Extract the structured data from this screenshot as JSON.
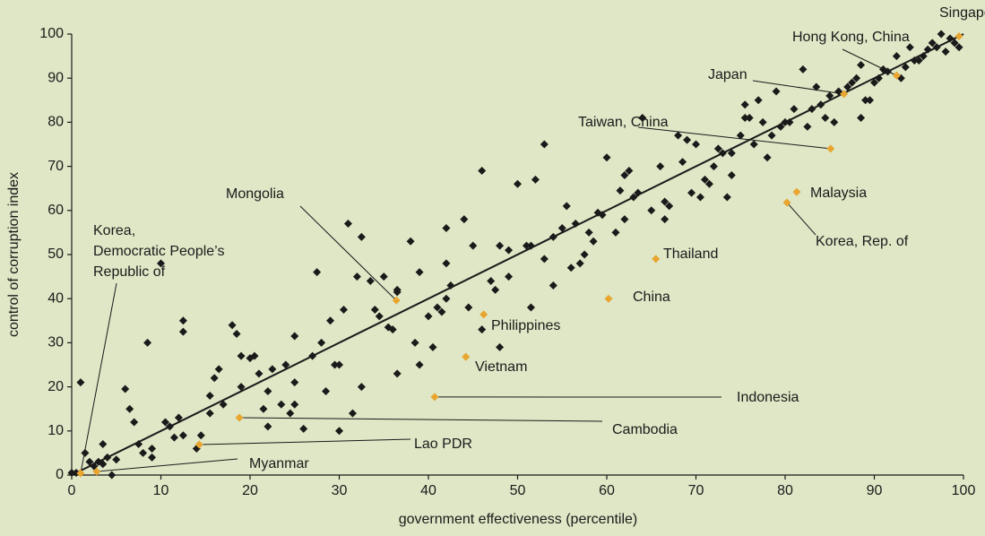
{
  "chart_data": {
    "type": "scatter",
    "x_label": "government effectiveness (percentile)",
    "y_label": "control of corruption index",
    "xlim": [
      0,
      100
    ],
    "ylim": [
      0,
      100
    ],
    "xticks": [
      0,
      10,
      20,
      30,
      40,
      50,
      60,
      70,
      80,
      90,
      100
    ],
    "yticks": [
      0,
      10,
      20,
      30,
      40,
      50,
      60,
      70,
      80,
      90,
      100
    ],
    "color": "#1a1a1a",
    "highlight_color": "#e8a530",
    "fit_line": {
      "x": [
        0,
        100
      ],
      "y": [
        0,
        100
      ]
    },
    "points": [
      [
        0,
        0.5
      ],
      [
        0.5,
        0.5
      ],
      [
        1,
        21
      ],
      [
        1.5,
        5
      ],
      [
        2,
        3
      ],
      [
        2.5,
        2
      ],
      [
        3,
        3
      ],
      [
        3.5,
        2.5
      ],
      [
        3.5,
        7
      ],
      [
        4,
        4
      ],
      [
        4.5,
        0
      ],
      [
        5,
        3.5
      ],
      [
        6,
        19.5
      ],
      [
        6.5,
        15
      ],
      [
        7,
        12
      ],
      [
        7.5,
        7
      ],
      [
        8,
        5
      ],
      [
        8.5,
        30
      ],
      [
        9,
        6
      ],
      [
        9,
        4
      ],
      [
        10,
        48
      ],
      [
        10.5,
        12
      ],
      [
        11,
        11
      ],
      [
        11.5,
        8.5
      ],
      [
        12,
        13
      ],
      [
        12.5,
        35
      ],
      [
        12.5,
        32.5
      ],
      [
        12.5,
        9
      ],
      [
        14,
        6
      ],
      [
        14.5,
        9
      ],
      [
        15.5,
        18
      ],
      [
        15.5,
        14
      ],
      [
        16,
        22
      ],
      [
        16.5,
        24
      ],
      [
        17,
        16
      ],
      [
        18,
        34
      ],
      [
        18.5,
        32
      ],
      [
        19,
        27
      ],
      [
        19,
        20
      ],
      [
        20,
        26.5
      ],
      [
        20.5,
        27
      ],
      [
        21,
        23
      ],
      [
        21.5,
        15
      ],
      [
        22,
        19
      ],
      [
        22,
        11
      ],
      [
        22.5,
        24
      ],
      [
        23.5,
        16
      ],
      [
        24,
        25
      ],
      [
        24.5,
        14
      ],
      [
        25,
        31.5
      ],
      [
        25,
        21
      ],
      [
        25,
        16
      ],
      [
        26,
        10.5
      ],
      [
        27,
        27
      ],
      [
        27.5,
        46
      ],
      [
        28,
        30
      ],
      [
        28.5,
        19
      ],
      [
        29,
        35
      ],
      [
        29.5,
        25
      ],
      [
        30,
        25
      ],
      [
        30,
        10
      ],
      [
        30.5,
        37.5
      ],
      [
        31,
        57
      ],
      [
        31.5,
        14
      ],
      [
        32,
        45
      ],
      [
        32.5,
        20
      ],
      [
        32.5,
        54
      ],
      [
        33.5,
        44
      ],
      [
        34,
        37.5
      ],
      [
        34.5,
        36
      ],
      [
        35,
        45
      ],
      [
        35.5,
        33.5
      ],
      [
        36,
        33
      ],
      [
        36.5,
        41.5
      ],
      [
        36.5,
        23
      ],
      [
        36.5,
        42
      ],
      [
        38,
        53
      ],
      [
        38.5,
        30
      ],
      [
        39,
        25
      ],
      [
        39,
        46
      ],
      [
        40,
        36
      ],
      [
        40.5,
        29
      ],
      [
        41,
        38
      ],
      [
        41.5,
        37
      ],
      [
        42,
        40
      ],
      [
        42,
        48
      ],
      [
        42.5,
        43
      ],
      [
        42,
        56
      ],
      [
        44,
        58
      ],
      [
        44.5,
        38
      ],
      [
        45,
        52
      ],
      [
        46,
        69
      ],
      [
        46,
        33
      ],
      [
        47,
        44
      ],
      [
        47.5,
        42
      ],
      [
        48,
        29
      ],
      [
        48,
        52
      ],
      [
        49,
        45
      ],
      [
        49,
        51
      ],
      [
        50,
        66
      ],
      [
        51,
        52
      ],
      [
        51.5,
        52
      ],
      [
        51.5,
        38
      ],
      [
        52,
        67
      ],
      [
        53,
        49
      ],
      [
        53,
        75
      ],
      [
        54,
        43
      ],
      [
        54,
        54
      ],
      [
        55,
        56
      ],
      [
        55.5,
        61
      ],
      [
        56,
        47
      ],
      [
        56.5,
        57
      ],
      [
        57,
        48
      ],
      [
        57.5,
        50
      ],
      [
        58,
        55
      ],
      [
        58.5,
        53
      ],
      [
        59,
        59.5
      ],
      [
        59.5,
        59
      ],
      [
        60,
        72
      ],
      [
        61,
        55
      ],
      [
        61.5,
        64.5
      ],
      [
        62,
        58
      ],
      [
        62,
        68
      ],
      [
        62.5,
        69
      ],
      [
        63,
        63
      ],
      [
        63.5,
        64
      ],
      [
        64,
        81
      ],
      [
        65,
        60
      ],
      [
        66,
        70
      ],
      [
        66.5,
        62
      ],
      [
        66.5,
        58
      ],
      [
        67,
        61
      ],
      [
        68,
        77
      ],
      [
        68.5,
        71
      ],
      [
        69,
        76
      ],
      [
        69.5,
        64
      ],
      [
        70,
        75
      ],
      [
        70.5,
        63
      ],
      [
        71,
        67
      ],
      [
        71.5,
        66
      ],
      [
        72,
        70
      ],
      [
        72.5,
        74
      ],
      [
        73,
        73
      ],
      [
        73.5,
        63
      ],
      [
        74,
        68
      ],
      [
        74,
        73
      ],
      [
        75,
        77
      ],
      [
        75.5,
        81
      ],
      [
        75.5,
        84
      ],
      [
        76,
        81
      ],
      [
        76.5,
        75
      ],
      [
        77,
        85
      ],
      [
        77.5,
        80
      ],
      [
        78,
        72
      ],
      [
        78.5,
        77
      ],
      [
        79,
        87
      ],
      [
        79.5,
        79
      ],
      [
        80,
        80
      ],
      [
        80.5,
        80
      ],
      [
        81,
        83
      ],
      [
        82,
        92
      ],
      [
        82.5,
        79
      ],
      [
        83,
        83
      ],
      [
        83.5,
        88
      ],
      [
        84,
        84
      ],
      [
        84.5,
        81
      ],
      [
        85,
        86
      ],
      [
        85.5,
        80
      ],
      [
        86,
        87
      ],
      [
        87,
        88
      ],
      [
        87.5,
        89
      ],
      [
        88,
        90
      ],
      [
        88.5,
        93
      ],
      [
        88.5,
        81
      ],
      [
        89,
        85
      ],
      [
        89.5,
        85
      ],
      [
        90,
        89
      ],
      [
        90.5,
        90
      ],
      [
        91,
        92
      ],
      [
        91.5,
        91.5
      ],
      [
        92.5,
        95
      ],
      [
        93,
        90
      ],
      [
        93.5,
        92.5
      ],
      [
        94,
        97
      ],
      [
        94.5,
        94
      ],
      [
        95,
        94
      ],
      [
        95.5,
        95
      ],
      [
        96,
        96.5
      ],
      [
        96.5,
        98
      ],
      [
        97,
        97
      ],
      [
        97.5,
        100
      ],
      [
        98,
        96
      ],
      [
        98.5,
        99
      ],
      [
        99,
        98
      ],
      [
        99.5,
        97
      ]
    ],
    "highlights": [
      {
        "label": "Singapore",
        "x": 99.5,
        "y": 99.5
      },
      {
        "label": "Hong Kong, China",
        "x": 92.5,
        "y": 90.6
      },
      {
        "label": "Japan",
        "x": 86.6,
        "y": 86.4
      },
      {
        "label": "Taiwan, China",
        "x": 85.1,
        "y": 74
      },
      {
        "label": "Malaysia",
        "x": 81.3,
        "y": 64.2
      },
      {
        "label": "Korea, Rep. of",
        "x": 80.2,
        "y": 61.8
      },
      {
        "label": "Thailand",
        "x": 65.5,
        "y": 49
      },
      {
        "label": "China",
        "x": 60.2,
        "y": 40
      },
      {
        "label": "Philippines",
        "x": 46.2,
        "y": 36.4
      },
      {
        "label": "Vietnam",
        "x": 44.2,
        "y": 26.8
      },
      {
        "label": "Indonesia",
        "x": 40.7,
        "y": 17.7
      },
      {
        "label": "Cambodia",
        "x": 18.8,
        "y": 13
      },
      {
        "label": "Lao PDR",
        "x": 14.3,
        "y": 6.9
      },
      {
        "label": "Myanmar",
        "x": 2.8,
        "y": 0.8
      },
      {
        "label": "Mongolia",
        "x": 36.4,
        "y": 39.6
      },
      {
        "label": [
          "Korea,",
          "Democratic People’s",
          "Republic of"
        ],
        "x": 1,
        "y": 0.4
      }
    ]
  }
}
